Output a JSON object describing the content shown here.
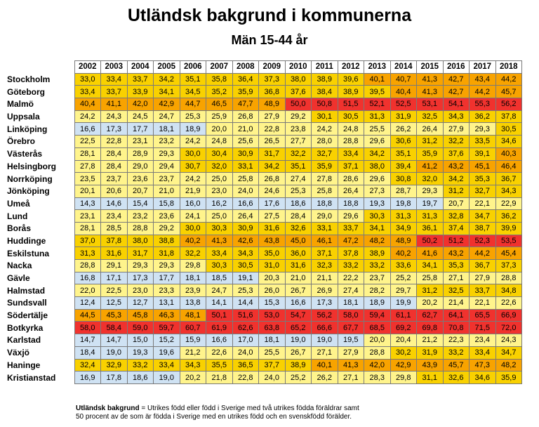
{
  "chart_data": {
    "type": "heatmap",
    "title": "Utländsk bakgrund i kommunerna",
    "subtitle": "Män 15-44 år",
    "columns": [
      "2002",
      "2003",
      "2004",
      "2005",
      "2006",
      "2007",
      "2008",
      "2009",
      "2010",
      "2011",
      "2012",
      "2013",
      "2014",
      "2015",
      "2016",
      "2017",
      "2018"
    ],
    "rows": [
      {
        "name": "Stockholm",
        "values": [
          "33,0",
          "33,4",
          "33,7",
          "34,2",
          "35,1",
          "35,8",
          "36,4",
          "37,3",
          "38,0",
          "38,9",
          "39,6",
          "40,1",
          "40,7",
          "41,3",
          "42,7",
          "43,4",
          "44,2"
        ]
      },
      {
        "name": "Göteborg",
        "values": [
          "33,4",
          "33,7",
          "33,9",
          "34,1",
          "34,5",
          "35,2",
          "35,9",
          "36,8",
          "37,6",
          "38,4",
          "38,9",
          "39,5",
          "40,4",
          "41,3",
          "42,7",
          "44,2",
          "45,7"
        ]
      },
      {
        "name": "Malmö",
        "values": [
          "40,4",
          "41,1",
          "42,0",
          "42,9",
          "44,7",
          "46,5",
          "47,7",
          "48,9",
          "50,0",
          "50,8",
          "51,5",
          "52,1",
          "52,5",
          "53,1",
          "54,1",
          "55,3",
          "56,2"
        ]
      },
      {
        "name": "Uppsala",
        "values": [
          "24,2",
          "24,3",
          "24,5",
          "24,7",
          "25,3",
          "25,9",
          "26,8",
          "27,9",
          "29,2",
          "30,1",
          "30,5",
          "31,3",
          "31,9",
          "32,5",
          "34,3",
          "36,2",
          "37,8"
        ]
      },
      {
        "name": "Linköping",
        "values": [
          "16,6",
          "17,3",
          "17,7",
          "18,1",
          "18,9",
          "20,0",
          "21,0",
          "22,8",
          "23,8",
          "24,2",
          "24,8",
          "25,5",
          "26,2",
          "26,4",
          "27,9",
          "29,3",
          "30,5"
        ]
      },
      {
        "name": "Örebro",
        "values": [
          "22,5",
          "22,8",
          "23,1",
          "23,2",
          "24,2",
          "24,8",
          "25,6",
          "26,5",
          "27,7",
          "28,0",
          "28,8",
          "29,6",
          "30,6",
          "31,2",
          "32,2",
          "33,5",
          "34,6"
        ]
      },
      {
        "name": "Västerås",
        "values": [
          "28,1",
          "28,4",
          "28,9",
          "29,3",
          "30,0",
          "30,4",
          "30,9",
          "31,7",
          "32,2",
          "32,7",
          "33,4",
          "34,2",
          "35,1",
          "35,9",
          "37,6",
          "39,1",
          "40,3"
        ]
      },
      {
        "name": "Helsingborg",
        "values": [
          "27,8",
          "28,4",
          "29,0",
          "29,4",
          "30,7",
          "32,0",
          "33,1",
          "34,2",
          "35,1",
          "35,9",
          "37,1",
          "38,0",
          "39,4",
          "41,2",
          "43,2",
          "45,1",
          "46,4"
        ]
      },
      {
        "name": "Norrköping",
        "values": [
          "23,5",
          "23,7",
          "23,6",
          "23,7",
          "24,2",
          "25,0",
          "25,8",
          "26,8",
          "27,4",
          "27,8",
          "28,6",
          "29,6",
          "30,8",
          "32,0",
          "34,2",
          "35,3",
          "36,7"
        ]
      },
      {
        "name": "Jönköping",
        "values": [
          "20,1",
          "20,6",
          "20,7",
          "21,0",
          "21,9",
          "23,0",
          "24,0",
          "24,6",
          "25,3",
          "25,8",
          "26,4",
          "27,3",
          "28,7",
          "29,3",
          "31,2",
          "32,7",
          "34,3"
        ]
      },
      {
        "name": "Umeå",
        "values": [
          "14,3",
          "14,6",
          "15,4",
          "15,8",
          "16,0",
          "16,2",
          "16,6",
          "17,6",
          "18,6",
          "18,8",
          "18,8",
          "19,3",
          "19,8",
          "19,7",
          "20,7",
          "22,1",
          "22,9"
        ]
      },
      {
        "name": "Lund",
        "values": [
          "23,1",
          "23,4",
          "23,2",
          "23,6",
          "24,1",
          "25,0",
          "26,4",
          "27,5",
          "28,4",
          "29,0",
          "29,6",
          "30,3",
          "31,3",
          "31,3",
          "32,8",
          "34,7",
          "36,2"
        ]
      },
      {
        "name": "Borås",
        "values": [
          "28,1",
          "28,5",
          "28,8",
          "29,2",
          "30,0",
          "30,3",
          "30,9",
          "31,6",
          "32,6",
          "33,1",
          "33,7",
          "34,1",
          "34,9",
          "36,1",
          "37,4",
          "38,7",
          "39,9"
        ]
      },
      {
        "name": "Huddinge",
        "values": [
          "37,0",
          "37,8",
          "38,0",
          "38,8",
          "40,2",
          "41,3",
          "42,6",
          "43,8",
          "45,0",
          "46,1",
          "47,2",
          "48,2",
          "48,9",
          "50,2",
          "51,2",
          "52,3",
          "53,5"
        ]
      },
      {
        "name": "Eskilstuna",
        "values": [
          "31,3",
          "31,6",
          "31,7",
          "31,8",
          "32,2",
          "33,4",
          "34,3",
          "35,0",
          "36,0",
          "37,1",
          "37,8",
          "38,9",
          "40,2",
          "41,6",
          "43,2",
          "44,2",
          "45,4"
        ]
      },
      {
        "name": "Nacka",
        "values": [
          "28,8",
          "29,1",
          "29,3",
          "29,3",
          "29,8",
          "30,3",
          "30,5",
          "31,0",
          "31,6",
          "32,3",
          "33,2",
          "33,2",
          "33,6",
          "34,1",
          "35,3",
          "36,7",
          "37,3"
        ]
      },
      {
        "name": "Gävle",
        "values": [
          "16,8",
          "17,1",
          "17,3",
          "17,7",
          "18,1",
          "18,5",
          "19,1",
          "20,3",
          "21,0",
          "21,1",
          "22,2",
          "23,7",
          "25,2",
          "25,8",
          "27,1",
          "27,9",
          "28,8"
        ]
      },
      {
        "name": "Halmstad",
        "values": [
          "22,0",
          "22,5",
          "23,0",
          "23,3",
          "23,9",
          "24,7",
          "25,3",
          "26,0",
          "26,7",
          "26,9",
          "27,4",
          "28,2",
          "29,7",
          "31,2",
          "32,5",
          "33,7",
          "34,8"
        ]
      },
      {
        "name": "Sundsvall",
        "values": [
          "12,4",
          "12,5",
          "12,7",
          "13,1",
          "13,8",
          "14,1",
          "14,4",
          "15,3",
          "16,6",
          "17,3",
          "18,1",
          "18,9",
          "19,9",
          "20,2",
          "21,4",
          "22,1",
          "22,6"
        ]
      },
      {
        "name": "Södertälje",
        "values": [
          "44,5",
          "45,3",
          "45,8",
          "46,3",
          "48,1",
          "50,1",
          "51,6",
          "53,0",
          "54,7",
          "56,2",
          "58,0",
          "59,4",
          "61,1",
          "62,7",
          "64,1",
          "65,5",
          "66,9"
        ]
      },
      {
        "name": "Botkyrka",
        "values": [
          "58,0",
          "58,4",
          "59,0",
          "59,7",
          "60,7",
          "61,9",
          "62,6",
          "63,8",
          "65,2",
          "66,6",
          "67,7",
          "68,5",
          "69,2",
          "69,8",
          "70,8",
          "71,5",
          "72,0"
        ]
      },
      {
        "name": "Karlstad",
        "values": [
          "14,7",
          "14,7",
          "15,0",
          "15,2",
          "15,9",
          "16,6",
          "17,0",
          "18,1",
          "19,0",
          "19,0",
          "19,5",
          "20,0",
          "20,4",
          "21,2",
          "22,3",
          "23,4",
          "24,3"
        ]
      },
      {
        "name": "Växjö",
        "values": [
          "18,4",
          "19,0",
          "19,3",
          "19,6",
          "21,2",
          "22,6",
          "24,0",
          "25,5",
          "26,7",
          "27,1",
          "27,9",
          "28,8",
          "30,2",
          "31,9",
          "33,2",
          "33,4",
          "34,7"
        ]
      },
      {
        "name": "Haninge",
        "values": [
          "32,4",
          "32,9",
          "33,2",
          "33,4",
          "34,3",
          "35,5",
          "36,5",
          "37,7",
          "38,9",
          "40,1",
          "41,3",
          "42,0",
          "42,9",
          "43,9",
          "45,7",
          "47,3",
          "48,2"
        ]
      },
      {
        "name": "Kristianstad",
        "values": [
          "16,9",
          "17,8",
          "18,6",
          "19,0",
          "20,2",
          "21,8",
          "22,8",
          "24,0",
          "25,2",
          "26,2",
          "27,1",
          "28,3",
          "29,8",
          "31,1",
          "32,6",
          "34,6",
          "35,9"
        ]
      }
    ],
    "color_bands": [
      {
        "min": 0,
        "max": 20,
        "color": "#cfe2f3"
      },
      {
        "min": 20,
        "max": 30,
        "color": "#fff48c"
      },
      {
        "min": 30,
        "max": 40,
        "color": "#f9d100"
      },
      {
        "min": 40,
        "max": 50,
        "color": "#f8a300"
      },
      {
        "min": 50,
        "max": 100,
        "color": "#f0322e"
      }
    ]
  },
  "footnote": {
    "term": "Utländsk bakgrund",
    "definition": " = Utrikes född eller född i Sverige med två utrikes födda föräldrar samt",
    "line2": "50 procent av de som är födda i Sverige med en utrikes född och en svenskfödd förälder."
  }
}
